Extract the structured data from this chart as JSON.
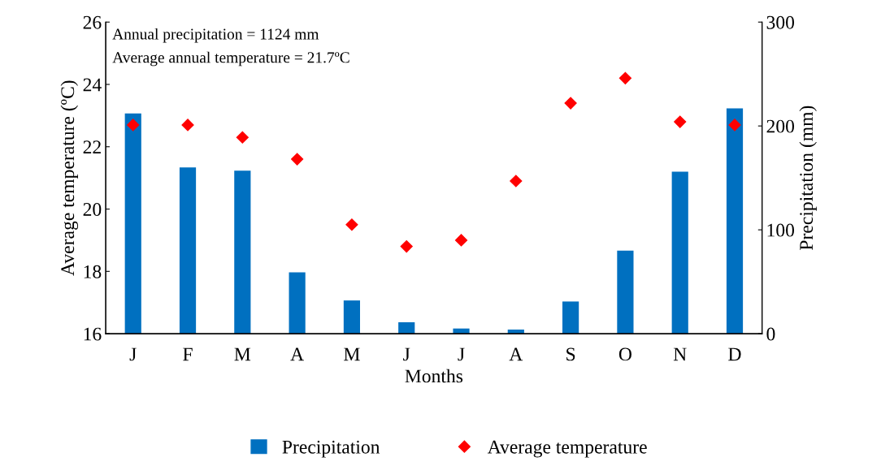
{
  "chart_data": {
    "type": "bar",
    "xlabel": "Months",
    "ylabel": "Average temperature (ºC)",
    "y2label": "Precipitation (mm)",
    "categories": [
      "J",
      "F",
      "M",
      "A",
      "M",
      "J",
      "J",
      "A",
      "S",
      "O",
      "N",
      "D"
    ],
    "series": [
      {
        "name": "Precipitation",
        "axis": "y2",
        "color": "#0070c0",
        "values": [
          212,
          160,
          157,
          59,
          32,
          11,
          5,
          4,
          31,
          80,
          156,
          217
        ]
      },
      {
        "name": "Average temperature",
        "type": "scatter",
        "marker": "diamond",
        "color": "#ff0000",
        "values": [
          22.7,
          22.7,
          22.3,
          21.6,
          19.5,
          18.8,
          19.0,
          20.9,
          23.4,
          24.2,
          22.8,
          22.7
        ]
      }
    ],
    "ylim": [
      16,
      26
    ],
    "yticks": [
      16,
      18,
      20,
      22,
      24,
      26
    ],
    "y2lim": [
      0,
      300
    ],
    "y2ticks": [
      0,
      100,
      200,
      300
    ],
    "annotations": [
      "Annual precipitation = 1124 mm",
      "Average annual temperature = 21.7ºC"
    ],
    "grid": false,
    "legend": "bottom"
  }
}
